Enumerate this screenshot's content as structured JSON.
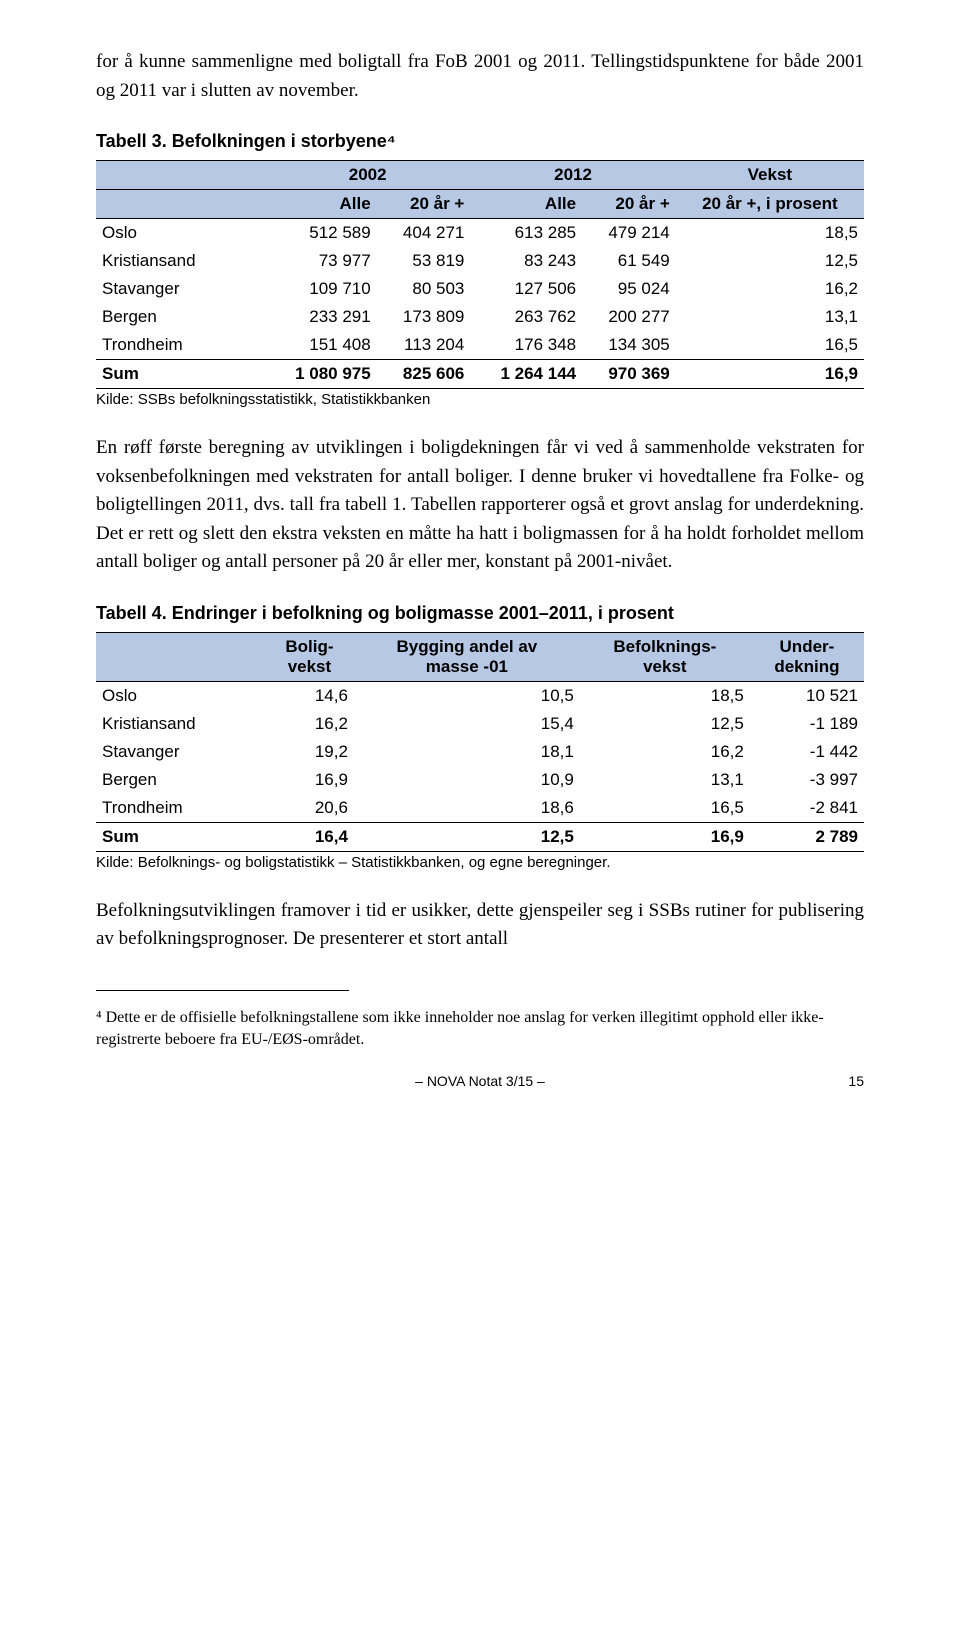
{
  "intro_p1": "for å kunne sammenligne med boligtall fra FoB 2001 og 2011. Tellings­tidspunktene for både 2001 og 2011 var i slutten av november.",
  "table3": {
    "caption": "Tabell 3.  Befolkningen i storbyene⁴",
    "h_2002": "2002",
    "h_2012": "2012",
    "h_vekst": "Vekst",
    "h_alle_a": "Alle",
    "h_20_a": "20 år +",
    "h_alle_b": "Alle",
    "h_20_b": "20 år +",
    "h_pros": "20 år +, i prosent",
    "rows": [
      {
        "c0": "Oslo",
        "c1": "512 589",
        "c2": "404 271",
        "c3": "613 285",
        "c4": "479 214",
        "c5": "18,5"
      },
      {
        "c0": "Kristiansand",
        "c1": "73 977",
        "c2": "53 819",
        "c3": "83 243",
        "c4": "61 549",
        "c5": "12,5"
      },
      {
        "c0": "Stavanger",
        "c1": "109 710",
        "c2": "80 503",
        "c3": "127 506",
        "c4": "95 024",
        "c5": "16,2"
      },
      {
        "c0": "Bergen",
        "c1": "233 291",
        "c2": "173 809",
        "c3": "263 762",
        "c4": "200 277",
        "c5": "13,1"
      },
      {
        "c0": "Trondheim",
        "c1": "151 408",
        "c2": "113 204",
        "c3": "176 348",
        "c4": "134 305",
        "c5": "16,5"
      }
    ],
    "sum": {
      "c0": "Sum",
      "c1": "1 080 975",
      "c2": "825 606",
      "c3": "1 264 144",
      "c4": "970 369",
      "c5": "16,9"
    },
    "source": "Kilde: SSBs befolkningsstatistikk, Statistikkbanken"
  },
  "body_p2": "En røff første beregning av utviklingen i boligdekningen får vi ved å sammen­holde vekstraten for voksenbefolkningen med vekstraten for antall boliger. I denne bruker vi hovedtallene fra Folke- og boligtellingen 2011, dvs. tall fra tabell 1. Tabellen rapporterer også et grovt anslag for underdekning. Det er rett og slett den ekstra veksten en måtte ha hatt i boligmassen for å ha holdt forholdet mellom antall boliger og antall personer på 20 år eller mer, konstant på 2001-nivået.",
  "table4": {
    "caption": "Tabell 4.  Endringer i befolkning og boligmasse 2001–2011, i prosent",
    "h0": "",
    "h1": "Bolig-\nvekst",
    "h2": "Bygging andel av\nmasse -01",
    "h3": "Befolknings-\nvekst",
    "h4": "Under-\ndekning",
    "rows": [
      {
        "c0": "Oslo",
        "c1": "14,6",
        "c2": "10,5",
        "c3": "18,5",
        "c4": "10 521"
      },
      {
        "c0": "Kristiansand",
        "c1": "16,2",
        "c2": "15,4",
        "c3": "12,5",
        "c4": "-1 189"
      },
      {
        "c0": "Stavanger",
        "c1": "19,2",
        "c2": "18,1",
        "c3": "16,2",
        "c4": "-1 442"
      },
      {
        "c0": "Bergen",
        "c1": "16,9",
        "c2": "10,9",
        "c3": "13,1",
        "c4": "-3 997"
      },
      {
        "c0": "Trondheim",
        "c1": "20,6",
        "c2": "18,6",
        "c3": "16,5",
        "c4": "-2 841"
      }
    ],
    "sum": {
      "c0": "Sum",
      "c1": "16,4",
      "c2": "12,5",
      "c3": "16,9",
      "c4": "2 789"
    },
    "source": "Kilde: Befolknings- og boligstatistikk – Statistikkbanken, og egne beregninger."
  },
  "body_p3": "Befolkningsutviklingen framover i tid er usikker, dette gjenspeiler seg i SSBs rutiner for publisering av befolkningsprognoser. De presenterer et stort antall",
  "footnote": "⁴ Dette er de offisielle befolkningstallene som ikke inneholder noe anslag for verken illegitimt opphold eller ikke-registrerte beboere fra EU-/EØS-området.",
  "footer_center": "– NOVA Notat 3/15 –",
  "footer_page": "15"
}
